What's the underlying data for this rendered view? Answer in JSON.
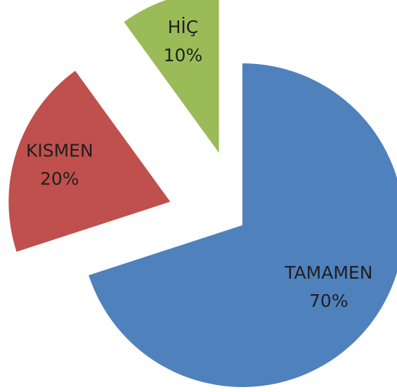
{
  "chart_data": {
    "type": "pie",
    "categories": [
      "TAMAMEN",
      "KISMEN",
      "HİÇ"
    ],
    "values": [
      70,
      20,
      10
    ],
    "value_labels": [
      "70%",
      "20%",
      "10%"
    ],
    "colors": [
      "#4f81bd",
      "#c0504d",
      "#9bbb59"
    ]
  }
}
